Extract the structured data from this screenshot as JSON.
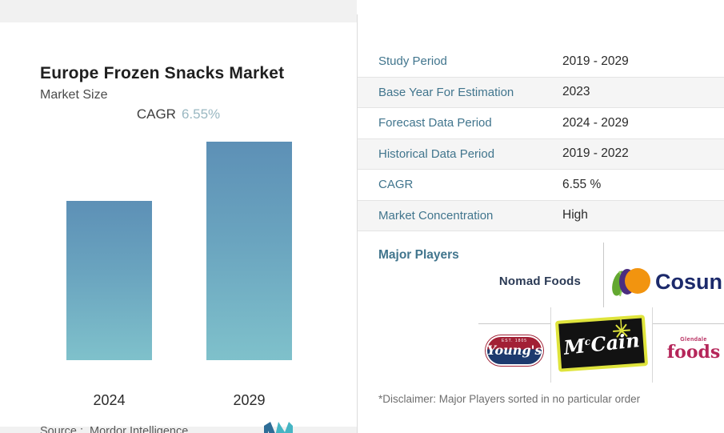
{
  "left_panel": {
    "title": "Europe Frozen Snacks Market",
    "subtitle": "Market Size",
    "cagr_label": "CAGR",
    "cagr_value": "6.55%",
    "source_label": "Source :",
    "source_value": "Mordor Intelligence"
  },
  "chart_data": {
    "type": "bar",
    "title": "Europe Frozen Snacks Market — Market Size",
    "categories": [
      "2024",
      "2029"
    ],
    "values": [
      1.0,
      1.37
    ],
    "value_note": "no numeric axis shown; bars depict relative market size implied by CAGR 6.55% (2029 ≈ 1.37 × 2024)",
    "xlabel": "",
    "ylabel": "",
    "grid": false,
    "legend": false,
    "bar_gradient": [
      "#5d90b6",
      "#7fc1cb"
    ]
  },
  "table": {
    "rows": [
      {
        "label": "Study Period",
        "value": "2019 - 2029"
      },
      {
        "label": "Base Year For Estimation",
        "value": "2023"
      },
      {
        "label": "Forecast Data Period",
        "value": "2024 - 2029"
      },
      {
        "label": "Historical Data Period",
        "value": "2019 - 2022"
      },
      {
        "label": "CAGR",
        "value": "6.55 %"
      },
      {
        "label": "Market Concentration",
        "value": "High"
      }
    ]
  },
  "major_players": {
    "label": "Major Players",
    "nomad": "Nomad Foods",
    "cosun": "Cosun",
    "youngs_est": "EST. 1805",
    "youngs_name": "Young's",
    "mccain_prefix": "M",
    "mccain_sup": "c",
    "mccain_suffix": "Cain",
    "glendale_top": "Glendale",
    "glendale_name": "foods",
    "disclaimer": "*Disclaimer: Major Players sorted in no particular order"
  },
  "colors": {
    "accent_teal_label": "#41758d",
    "cagr_value_muted": "#9ab8c2",
    "bar_top": "#5d90b6",
    "bar_bottom": "#7fc1cb",
    "row_alt": "#f5f5f5",
    "cosun_text": "#1c2a6b",
    "cosun_orange": "#f2940f",
    "cosun_purple": "#4b2d7f",
    "cosun_green": "#63a830",
    "youngs_red": "#a22035",
    "youngs_navy": "#1d3a6e",
    "mccain_yellow": "#dfe43c",
    "glendale_magenta": "#b5265a",
    "nomad_navy": "#2b3a55",
    "mordor_blue": "#2e6d97",
    "mordor_teal": "#45b5c4"
  }
}
